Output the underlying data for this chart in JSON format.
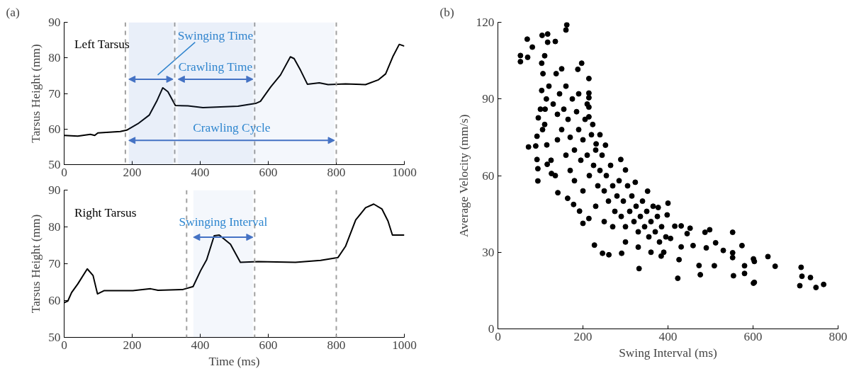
{
  "chart_data": [
    {
      "type": "line",
      "title": "(a)",
      "ylabel": "Tarsus Height (mm)",
      "xlim": [
        0,
        1000
      ],
      "xticks": [
        0,
        200,
        400,
        600,
        800,
        1000
      ],
      "ylim": [
        50,
        90
      ],
      "yticks": [
        50,
        60,
        70,
        80,
        90
      ],
      "grid": false,
      "marker": "none",
      "line_style": "solid",
      "annotations": [
        "Left Tarsus"
      ],
      "series": [
        {
          "color": "#000000",
          "x": [
            0,
            40,
            77,
            90,
            99,
            165,
            184,
            217,
            250,
            272,
            290,
            305,
            327,
            364,
            408,
            460,
            511,
            563,
            577,
            607,
            636,
            665,
            676,
            695,
            715,
            750,
            776,
            827,
            886,
            923,
            945,
            967,
            985,
            1000
          ],
          "values": [
            58.2,
            58,
            58.5,
            58.2,
            58.9,
            59.3,
            59.7,
            61.5,
            63.9,
            67.8,
            71.6,
            70.5,
            66.6,
            66.5,
            66,
            66.2,
            66.4,
            67.2,
            67.8,
            71.8,
            75.2,
            80.3,
            79.8,
            76.5,
            72.6,
            73,
            72.5,
            72.7,
            72.5,
            73.8,
            75.5,
            80.5,
            83.8,
            83.3
          ]
        }
      ],
      "ref_lines": [
        {
          "axis": "x",
          "value": 180,
          "color": "#a0a0a0",
          "line_style": "dashed"
        },
        {
          "axis": "x",
          "value": 325,
          "color": "#a0a0a0",
          "line_style": "dashed"
        },
        {
          "axis": "x",
          "value": 560,
          "color": "#a0a0a0",
          "line_style": "dashed"
        },
        {
          "axis": "x",
          "value": 800,
          "color": "#a0a0a0",
          "line_style": "dashed"
        }
      ],
      "bands": [
        {
          "axis": "x",
          "from": 190,
          "to": 320,
          "label": "Swinging Time",
          "color": "#4472c4"
        },
        {
          "axis": "x",
          "from": 335,
          "to": 555,
          "label": "Crawling Time",
          "color": "#4472c4"
        },
        {
          "axis": "x",
          "from": 190,
          "to": 795,
          "label": "Crawling Cycle",
          "color": "#4472c4"
        }
      ]
    },
    {
      "type": "line",
      "xlabel": "Time (ms)",
      "ylabel": "Tarsus Height (mm)",
      "xlim": [
        0,
        1000
      ],
      "xticks": [
        0,
        200,
        400,
        600,
        800,
        1000
      ],
      "ylim": [
        50,
        90
      ],
      "yticks": [
        50,
        60,
        70,
        80,
        90
      ],
      "grid": false,
      "marker": "none",
      "line_style": "solid",
      "annotations": [
        "Right Tarsus"
      ],
      "series": [
        {
          "color": "#000000",
          "x": [
            0,
            11,
            22,
            40,
            68,
            85,
            98,
            118,
            202,
            254,
            276,
            349,
            379,
            401,
            419,
            441,
            456,
            489,
            518,
            570,
            680,
            754,
            805,
            827,
            857,
            886,
            910,
            934,
            952,
            965,
            1000
          ],
          "values": [
            59.4,
            59.9,
            62.2,
            64.5,
            68.6,
            66.8,
            61.8,
            62.7,
            62.7,
            63.2,
            62.8,
            63,
            63.8,
            68.1,
            71.1,
            77.6,
            77.8,
            75.3,
            70.4,
            70.6,
            70.4,
            70.9,
            71.7,
            74.7,
            81.9,
            85.2,
            86.2,
            84.9,
            81.6,
            77.8,
            77.8
          ]
        }
      ],
      "ref_lines": [
        {
          "axis": "x",
          "value": 360,
          "color": "#a0a0a0",
          "line_style": "dashed"
        },
        {
          "axis": "x",
          "value": 560,
          "color": "#a0a0a0",
          "line_style": "dashed"
        },
        {
          "axis": "x",
          "value": 800,
          "color": "#a0a0a0",
          "line_style": "dashed"
        }
      ],
      "bands": [
        {
          "axis": "x",
          "from": 380,
          "to": 555,
          "label": "Swinging Interval",
          "color": "#4472c4"
        }
      ]
    },
    {
      "type": "scatter",
      "title": "(b)",
      "xlabel": "Swing Interval (ms)",
      "ylabel": "Average Velocity (mm/s)",
      "xlim": [
        0,
        800
      ],
      "xticks": [
        0,
        200,
        400,
        600,
        800
      ],
      "ylim": [
        0,
        120
      ],
      "yticks": [
        0,
        30,
        60,
        90,
        120
      ],
      "grid": false,
      "marker": "circle",
      "series": [
        {
          "color": "#000000",
          "x": [
            53,
            53,
            69,
            70,
            81,
            104,
            117,
            117,
            135,
            162,
            160,
            110,
            103,
            197,
            188,
            214,
            214,
            214,
            214,
            214,
            223,
            150,
            137,
            106,
            103,
            114,
            111,
            95,
            92,
            72,
            89,
            92,
            94,
            94,
            116,
            126,
            141,
            164,
            178,
            192,
            200,
            214,
            227,
            246,
            261,
            291,
            332,
            323,
            352,
            400,
            384,
            289,
            300,
            253,
            231,
            377,
            398,
            416,
            431,
            452,
            445,
            406,
            423,
            431,
            426,
            459,
            473,
            476,
            487,
            498,
            490,
            509,
            512,
            530,
            552,
            552,
            552,
            554,
            574,
            580,
            580,
            601,
            603,
            601,
            603,
            635,
            652,
            713,
            715,
            710,
            735,
            748,
            766,
            120,
            130,
            140,
            145,
            150,
            155,
            160,
            165,
            170,
            175,
            180,
            185,
            190,
            195,
            200,
            205,
            210,
            215,
            220,
            225,
            230,
            235,
            240,
            245,
            250,
            255,
            260,
            265,
            270,
            275,
            280,
            285,
            290,
            295,
            300,
            305,
            310,
            315,
            320,
            325,
            330,
            335,
            340,
            345,
            350,
            355,
            360,
            365,
            370,
            375,
            380,
            385,
            390,
            395,
            110,
            115,
            125,
            135,
            100,
            105,
            170,
            180,
            200,
            190,
            160,
            140,
            230,
            250,
            270,
            300,
            330,
            360,
            210,
            240
          ],
          "values": [
            107,
            104.6,
            113.4,
            106.3,
            110.3,
            114.9,
            115.4,
            112.2,
            112.5,
            119,
            117,
            106.9,
            104,
            104,
            101.6,
            98,
            92.3,
            90.5,
            86.8,
            83,
            80,
            101.8,
            99.9,
            99.9,
            93.3,
            90,
            86,
            82.6,
            75.4,
            71.2,
            71.6,
            66.3,
            62.7,
            57.9,
            64.4,
            60.8,
            53.3,
            51.1,
            48.7,
            46.1,
            41.3,
            43.2,
            32.8,
            29.6,
            29,
            29.6,
            23.6,
            57.4,
            53.9,
            49.2,
            28.5,
            66.3,
            62.2,
            71.9,
            72.4,
            47.5,
            44.6,
            40.2,
            40.3,
            39.4,
            37.3,
            35.4,
            19.8,
            32.1,
            27.1,
            32.6,
            24.8,
            21.2,
            37.8,
            38.8,
            31.7,
            24.7,
            33.7,
            30.7,
            37.8,
            29.8,
            27.9,
            20.8,
            32.6,
            24.7,
            21.7,
            27.4,
            26.4,
            17.9,
            18.2,
            28.3,
            24.5,
            24.1,
            20.6,
            16.9,
            20.1,
            16.2,
            17.4,
            95,
            88,
            84,
            92,
            78,
            86,
            95,
            82,
            75,
            90,
            70,
            85,
            78,
            66,
            74,
            82,
            68,
            60,
            76,
            64,
            70,
            56,
            62,
            68,
            54,
            60,
            50,
            64,
            56,
            46,
            52,
            58,
            44,
            50,
            40,
            56,
            46,
            52,
            42,
            48,
            38,
            44,
            50,
            40,
            46,
            36,
            42,
            48,
            38,
            44,
            34,
            40,
            30,
            36,
            80,
            72,
            66,
            60,
            86,
            78,
            62,
            58,
            54,
            92,
            68,
            74,
            48,
            42,
            40,
            34,
            32,
            30,
            88,
            76
          ]
        }
      ]
    }
  ]
}
